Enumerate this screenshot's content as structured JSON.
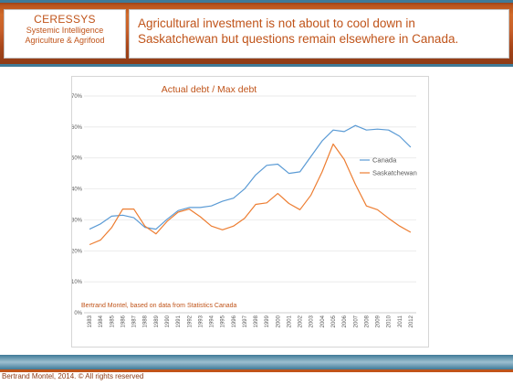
{
  "brand": {
    "name": "CERESSYS",
    "line1": "Systemic Intelligence",
    "line2": "Agriculture & Agrifood"
  },
  "headline": {
    "line1": "Agricultural investment is not about to cool down in",
    "line2": "Saskatchewan but questions remain elsewhere in Canada."
  },
  "footer": "Bertrand Montel, 2014. © All rights reserved",
  "colors": {
    "canada": "#5b9bd5",
    "saskatchewan": "#ed7d31",
    "accent": "#c0541a"
  },
  "chart_data": {
    "type": "line",
    "title": "Actual debt / Max debt",
    "xlabel": "",
    "ylabel": "",
    "ylim": [
      0,
      70
    ],
    "yticks": [
      "0%",
      "10%",
      "20%",
      "30%",
      "40%",
      "50%",
      "60%",
      "70%"
    ],
    "grid": true,
    "legend": "right",
    "annotation": "Bertrand Montel, based on data from Statistics Canada",
    "x": [
      "1983",
      "1984",
      "1985",
      "1986",
      "1987",
      "1988",
      "1989",
      "1990",
      "1991",
      "1992",
      "1993",
      "1994",
      "1995",
      "1996",
      "1997",
      "1998",
      "1999",
      "2000",
      "2001",
      "2002",
      "2003",
      "2004",
      "2005",
      "2006",
      "2007",
      "2008",
      "2009",
      "2010",
      "2011",
      "2012"
    ],
    "series": [
      {
        "name": "Canada",
        "color": "#5b9bd5",
        "values": [
          27,
          28.7,
          31.2,
          31.5,
          30.7,
          27.6,
          27,
          30.2,
          33,
          34,
          34,
          34.5,
          36,
          37,
          40,
          44.5,
          47.6,
          48,
          45,
          45.5,
          50.5,
          55.5,
          59,
          58.5,
          60.5,
          59,
          59.3,
          59,
          57,
          53.5
        ]
      },
      {
        "name": "Saskatchewan",
        "color": "#ed7d31",
        "values": [
          22,
          23.5,
          27.5,
          33.5,
          33.5,
          28,
          25.5,
          29.5,
          32.5,
          33.5,
          31,
          28,
          26.8,
          28,
          30.5,
          35,
          35.5,
          38.5,
          35.3,
          33.3,
          38,
          45.5,
          54.5,
          49.5,
          41.5,
          34.5,
          33.3,
          30.5,
          28,
          26
        ]
      }
    ]
  }
}
